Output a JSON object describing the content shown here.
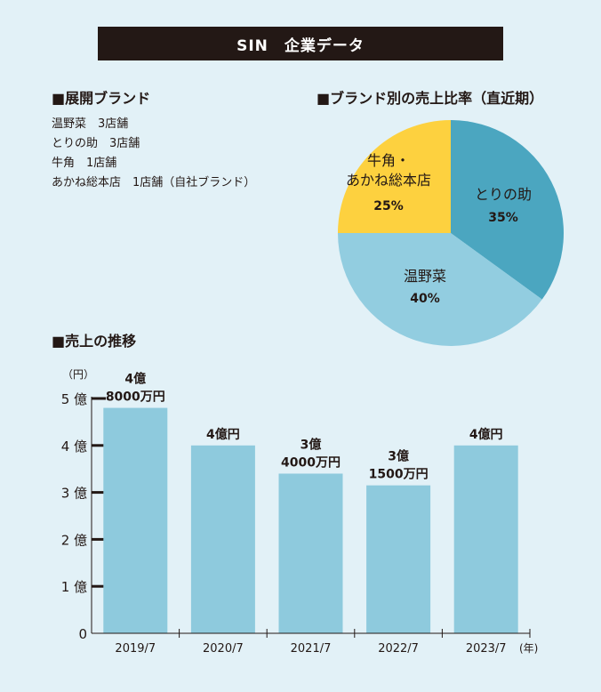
{
  "title": "SIN　企業データ",
  "brands": {
    "heading": "■展開ブランド",
    "items": [
      "温野菜　3店舗",
      "とりの助　3店舗",
      "牛角　1店舗",
      "あかね総本店　1店舗（自社ブランド）"
    ]
  },
  "pie_heading": "■ブランド別の売上比率（直近期）",
  "sales_heading": "■売上の推移",
  "colors": {
    "background": "#e2f1f7",
    "title_bar": "#231815",
    "bar": "#8ecadd",
    "pie_torinosuke": "#4ba6c0",
    "pie_onyasai": "#92cde0",
    "pie_other": "#fdd13f"
  },
  "chart_data": [
    {
      "type": "pie",
      "title": "■ブランド別の売上比率（直近期）",
      "slices": [
        {
          "label": "とりの助",
          "value": 35,
          "display": "35%",
          "color": "#4ba6c0"
        },
        {
          "label": "温野菜",
          "value": 40,
          "display": "40%",
          "color": "#92cde0"
        },
        {
          "label": "牛角・あかね総本店",
          "label_lines": [
            "牛角・",
            "あかね総本店"
          ],
          "value": 25,
          "display": "25%",
          "color": "#fdd13f"
        }
      ]
    },
    {
      "type": "bar",
      "title": "■売上の推移",
      "y_unit": "（円）",
      "x_unit": "(年)",
      "categories": [
        "2019/7",
        "2020/7",
        "2021/7",
        "2022/7",
        "2023/7"
      ],
      "values": [
        4.8,
        4.0,
        3.4,
        3.15,
        4.0
      ],
      "value_unit": "億円",
      "data_labels": [
        [
          "4億",
          "8000万円"
        ],
        [
          "4億円"
        ],
        [
          "3億",
          "4000万円"
        ],
        [
          "3億",
          "1500万円"
        ],
        [
          "4億円"
        ]
      ],
      "ylim": [
        0,
        5
      ],
      "y_ticks": [
        {
          "value": 0,
          "label": "0"
        },
        {
          "value": 1,
          "label": "1 億"
        },
        {
          "value": 2,
          "label": "2 億"
        },
        {
          "value": 3,
          "label": "3 億"
        },
        {
          "value": 4,
          "label": "4 億"
        },
        {
          "value": 5,
          "label": "5 億"
        }
      ]
    }
  ]
}
